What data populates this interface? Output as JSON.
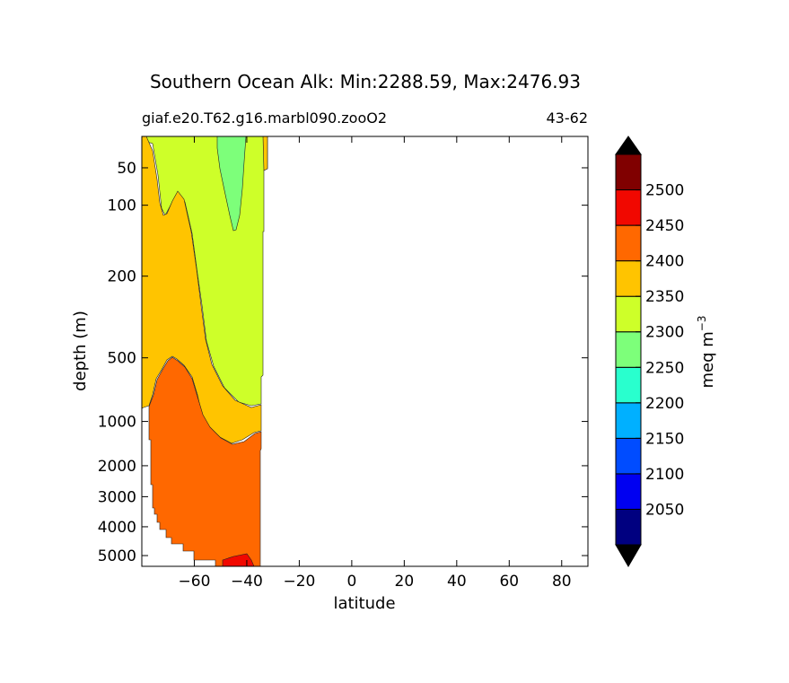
{
  "chart_data": {
    "type": "contourf",
    "title": "Southern Ocean Alk: Min:2288.59, Max:2476.93",
    "subtitle_left": "giaf.e20.T62.g16.marbl090.zooO2",
    "subtitle_right": "43-62",
    "xlabel": "latitude",
    "ylabel": "depth (m)",
    "xlim": [
      -80,
      90
    ],
    "xticks": [
      -60,
      -40,
      -20,
      0,
      20,
      40,
      60,
      80
    ],
    "xtick_labels": [
      "−60",
      "−40",
      "−20",
      "0",
      "20",
      "40",
      "60",
      "80"
    ],
    "yscale": "nonlinear (depth-stretched, inverted)",
    "ylim": [
      5500,
      0
    ],
    "yticks": [
      50,
      100,
      200,
      500,
      1000,
      2000,
      3000,
      4000,
      5000
    ],
    "yticks_axis_fraction": [
      0.073,
      0.16,
      0.325,
      0.515,
      0.663,
      0.766,
      0.838,
      0.908,
      0.975
    ],
    "ytick_labels": [
      "50",
      "100",
      "200",
      "500",
      "1000",
      "2000",
      "3000",
      "4000",
      "5000"
    ],
    "colorbar": {
      "label": "meq m",
      "label_superscript": "−3",
      "extend": "both",
      "levels": [
        2000,
        2050,
        2100,
        2150,
        2200,
        2250,
        2300,
        2350,
        2400,
        2450,
        2500,
        2550
      ],
      "tick_values": [
        2050,
        2100,
        2150,
        2200,
        2250,
        2300,
        2350,
        2400,
        2450,
        2500
      ],
      "tick_labels": [
        "2050",
        "2100",
        "2150",
        "2200",
        "2250",
        "2300",
        "2350",
        "2400",
        "2450",
        "2500"
      ],
      "colors": [
        "#000080",
        "#0000f1",
        "#004cff",
        "#00b0ff",
        "#29ffce",
        "#7dff7a",
        "#ceff29",
        "#ffc400",
        "#ff6800",
        "#f10800",
        "#800000"
      ],
      "extend_min_color": "#000000",
      "extend_max_color": "#000000"
    },
    "regions": [
      {
        "level_range": [
          2250,
          2300
        ],
        "color": "#7dff7a",
        "description": "low-alkalinity tongue near 45S–36S, surface to ~130 m"
      },
      {
        "level_range": [
          2300,
          2350
        ],
        "color": "#ceff29",
        "description": "upper ocean north of ~65S, surface to ~900 m"
      },
      {
        "level_range": [
          2350,
          2400
        ],
        "color": "#ffc400",
        "description": "surface to ~800 m near 78S; intermediate band 300–1800 m"
      },
      {
        "level_range": [
          2400,
          2450
        ],
        "color": "#ff6800",
        "description": "deep ocean below ~500–1800 m"
      },
      {
        "level_range": [
          2450,
          2500
        ],
        "color": "#f10800",
        "description": "small patch near bottom at ~42S"
      }
    ]
  }
}
